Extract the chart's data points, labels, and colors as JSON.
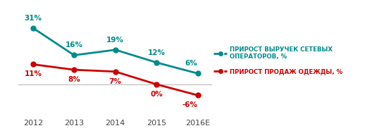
{
  "years": [
    "2012",
    "2013",
    "2014",
    "2015",
    "2016E"
  ],
  "teal_values": [
    31,
    16,
    19,
    12,
    6
  ],
  "red_values": [
    11,
    8,
    7,
    0,
    -6
  ],
  "teal_labels": [
    "31%",
    "16%",
    "19%",
    "12%",
    "6%"
  ],
  "red_labels": [
    "11%",
    "8%",
    "7%",
    "0%",
    "-6%"
  ],
  "teal_color": "#008B8B",
  "red_color": "#CC0000",
  "legend_teal": "ПРИРОСТ ВЫРУЧЕК СЕТЕВЫХ\nОПЕРАТОРОВ, %",
  "legend_red": "ПРИРОСТ ПРОДАЖ ОДЕЖДЫ, %",
  "background_color": "#ffffff",
  "ylim": [
    -18,
    42
  ]
}
